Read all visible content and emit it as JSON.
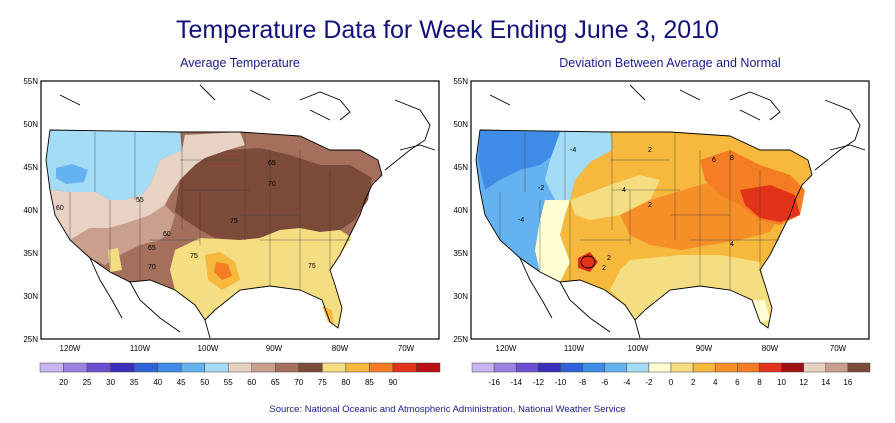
{
  "title": "Temperature Data for Week Ending June 3, 2010",
  "source": "Source:  National Oceanic and Atmospheric Administration, National Weather Service",
  "maps": [
    {
      "subtitle": "Average Temperature",
      "lat_labels": [
        "55N",
        "50N",
        "45N",
        "40N",
        "35N",
        "30N",
        "25N"
      ],
      "lon_labels": [
        "120W",
        "110W",
        "100W",
        "90W",
        "80W",
        "70W"
      ],
      "legend": {
        "values": [
          "20",
          "25",
          "30",
          "35",
          "40",
          "45",
          "50",
          "55",
          "60",
          "65",
          "70",
          "75",
          "80",
          "85",
          "90"
        ],
        "colors": [
          "#c8b4f0",
          "#9a82e2",
          "#6a4fd0",
          "#3a2fb8",
          "#2f62d8",
          "#3f8ce6",
          "#64b2f0",
          "#a5dcf5",
          "#e8d2c4",
          "#c99f8e",
          "#a4705c",
          "#7b4a38",
          "#f5dd82",
          "#f6b93e",
          "#f47d24",
          "#e2321a",
          "#b81014"
        ]
      },
      "contour_labels": [
        "65",
        "70",
        "75",
        "75",
        "60",
        "55",
        "60",
        "65",
        "70",
        "75"
      ]
    },
    {
      "subtitle": "Deviation Between Average and Normal",
      "lat_labels": [
        "55N",
        "50N",
        "45N",
        "40N",
        "35N",
        "30N",
        "25N"
      ],
      "lon_labels": [
        "120W",
        "110W",
        "100W",
        "90W",
        "80W",
        "70W"
      ],
      "legend": {
        "values": [
          "-16",
          "-14",
          "-12",
          "-10",
          "-8",
          "-6",
          "-4",
          "-2",
          "0",
          "2",
          "4",
          "6",
          "8",
          "10",
          "12",
          "14",
          "16"
        ],
        "colors": [
          "#c8b4f0",
          "#9a82e2",
          "#6a4fd0",
          "#3a2fb8",
          "#2f62d8",
          "#3f8ce6",
          "#64b2f0",
          "#a5dcf5",
          "#ffffd2",
          "#f5dd82",
          "#f6b93e",
          "#f59028",
          "#f47d24",
          "#e2321a",
          "#9e1012",
          "#e8d2c4",
          "#c99f8e",
          "#7b4a38"
        ]
      },
      "contour_labels": [
        "-4",
        "-4",
        "-2",
        "2",
        "2",
        "2",
        "4",
        "6",
        "8",
        "4",
        "2"
      ]
    }
  ]
}
